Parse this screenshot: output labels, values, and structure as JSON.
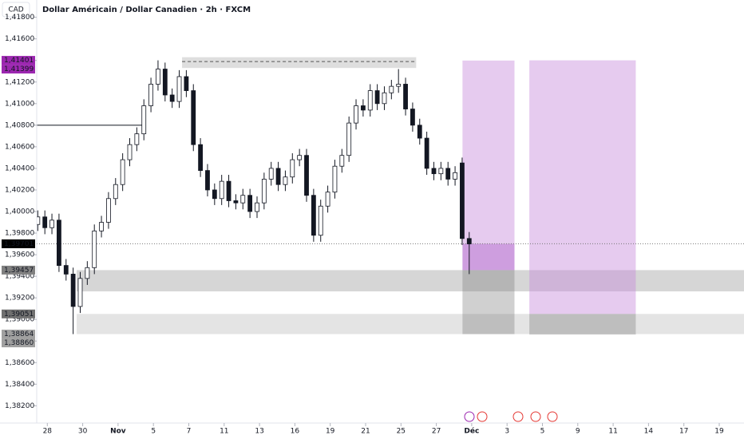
{
  "chart_data": {
    "type": "candlestick",
    "title": "Dollar Américain / Dollar Canadien · 2h · FXCM",
    "currency": "CAD",
    "xlim": [
      -0.3,
      19.7
    ],
    "ylim": [
      1.3804,
      1.4196
    ],
    "yticks": [
      {
        "value": 1.382,
        "label": "1,38200"
      },
      {
        "value": 1.384,
        "label": "1,38400"
      },
      {
        "value": 1.386,
        "label": "1,38600"
      },
      {
        "value": 1.388,
        "label": "1,38800"
      },
      {
        "value": 1.39,
        "label": "1,39000"
      },
      {
        "value": 1.392,
        "label": "1,39200"
      },
      {
        "value": 1.394,
        "label": "1,39400"
      },
      {
        "value": 1.396,
        "label": "1,39600"
      },
      {
        "value": 1.398,
        "label": "1,39800"
      },
      {
        "value": 1.4,
        "label": "1,40000"
      },
      {
        "value": 1.402,
        "label": "1,40200"
      },
      {
        "value": 1.404,
        "label": "1,40400"
      },
      {
        "value": 1.406,
        "label": "1,40600"
      },
      {
        "value": 1.408,
        "label": "1,40800"
      },
      {
        "value": 1.41,
        "label": "1,41000"
      },
      {
        "value": 1.412,
        "label": "1,41200"
      },
      {
        "value": 1.414,
        "label": "1,41400"
      },
      {
        "value": 1.416,
        "label": "1,41600"
      },
      {
        "value": 1.418,
        "label": "1,41800"
      }
    ],
    "xticks": [
      {
        "value": 0,
        "label": "28"
      },
      {
        "value": 1,
        "label": "30"
      },
      {
        "value": 2,
        "label": "Nov"
      },
      {
        "value": 3,
        "label": "5"
      },
      {
        "value": 4,
        "label": "7"
      },
      {
        "value": 5,
        "label": "11"
      },
      {
        "value": 6,
        "label": "13"
      },
      {
        "value": 7,
        "label": "16"
      },
      {
        "value": 8,
        "label": "19"
      },
      {
        "value": 9,
        "label": "21"
      },
      {
        "value": 10,
        "label": "25"
      },
      {
        "value": 11,
        "label": "27"
      },
      {
        "value": 12,
        "label": "Déc"
      },
      {
        "value": 13,
        "label": "3"
      },
      {
        "value": 14,
        "label": "5"
      },
      {
        "value": 15,
        "label": "9"
      },
      {
        "value": 16,
        "label": "11"
      },
      {
        "value": 17,
        "label": "14"
      },
      {
        "value": 18,
        "label": "17"
      },
      {
        "value": 19,
        "label": "19"
      }
    ],
    "x": [
      -0.27,
      -0.07,
      0.13,
      0.33,
      0.53,
      0.73,
      0.93,
      1.13,
      1.33,
      1.53,
      1.73,
      1.93,
      2.13,
      2.33,
      2.53,
      2.73,
      2.93,
      3.13,
      3.33,
      3.53,
      3.73,
      3.93,
      4.13,
      4.33,
      4.53,
      4.73,
      4.93,
      5.13,
      5.33,
      5.53,
      5.73,
      5.93,
      6.13,
      6.33,
      6.53,
      6.73,
      6.93,
      7.13,
      7.33,
      7.53,
      7.73,
      7.93,
      8.13,
      8.33,
      8.53,
      8.73,
      8.93,
      9.13,
      9.33,
      9.53,
      9.73,
      9.93,
      10.13,
      10.33,
      10.53,
      10.73,
      10.93,
      11.13,
      11.33,
      11.53,
      11.73,
      11.93
    ],
    "open": [
      1.3988,
      1.3995,
      1.3985,
      1.3992,
      1.395,
      1.3942,
      1.3912,
      1.3938,
      1.3948,
      1.3982,
      1.399,
      1.4012,
      1.4025,
      1.4048,
      1.4062,
      1.4072,
      1.4098,
      1.4118,
      1.4132,
      1.4108,
      1.4102,
      1.4125,
      1.4112,
      1.4062,
      1.4038,
      1.402,
      1.4012,
      1.4028,
      1.401,
      1.4008,
      1.4015,
      1.4,
      1.4008,
      1.403,
      1.404,
      1.4025,
      1.4032,
      1.4048,
      1.4052,
      1.4015,
      1.3978,
      1.4005,
      1.4018,
      1.4042,
      1.4052,
      1.4082,
      1.4098,
      1.4094,
      1.4112,
      1.41,
      1.411,
      1.4116,
      1.4118,
      1.4095,
      1.408,
      1.4068,
      1.404,
      1.4035,
      1.404,
      1.403,
      1.4045,
      1.3975
    ],
    "high": [
      1.4001,
      1.4001,
      1.3998,
      1.3998,
      1.3956,
      1.3948,
      1.3944,
      1.3954,
      1.3988,
      1.3996,
      1.4018,
      1.4031,
      1.4054,
      1.4068,
      1.4078,
      1.4104,
      1.4124,
      1.41401,
      1.4138,
      1.4114,
      1.4131,
      1.4131,
      1.4118,
      1.4068,
      1.4044,
      1.4026,
      1.4034,
      1.4034,
      1.4016,
      1.4021,
      1.4021,
      1.4014,
      1.4036,
      1.4046,
      1.4046,
      1.4038,
      1.4054,
      1.4058,
      1.4058,
      1.4021,
      1.4011,
      1.4024,
      1.4048,
      1.4058,
      1.4088,
      1.4104,
      1.4104,
      1.4118,
      1.4118,
      1.4116,
      1.4122,
      1.4132,
      1.4124,
      1.4101,
      1.4086,
      1.4074,
      1.4046,
      1.4046,
      1.4046,
      1.4042,
      1.405,
      1.3981
    ],
    "low": [
      1.3982,
      1.3979,
      1.3979,
      1.3944,
      1.3936,
      1.38864,
      1.3906,
      1.3932,
      1.3942,
      1.3976,
      1.3984,
      1.4006,
      1.4019,
      1.4042,
      1.4056,
      1.4066,
      1.4092,
      1.4112,
      1.4102,
      1.4096,
      1.4096,
      1.4106,
      1.4056,
      1.4032,
      1.4014,
      1.4006,
      1.4006,
      1.4004,
      1.4002,
      1.4002,
      1.3994,
      1.3994,
      1.4002,
      1.4024,
      1.4019,
      1.4019,
      1.4026,
      1.4042,
      1.4009,
      1.3972,
      1.3972,
      1.3999,
      1.4012,
      1.4036,
      1.4046,
      1.4076,
      1.4088,
      1.4088,
      1.4094,
      1.4094,
      1.4104,
      1.411,
      1.4089,
      1.4074,
      1.4062,
      1.4034,
      1.4029,
      1.4029,
      1.4024,
      1.4024,
      1.3969,
      1.3942
    ],
    "close": [
      1.3995,
      1.3985,
      1.3992,
      1.395,
      1.3942,
      1.3912,
      1.3938,
      1.3948,
      1.3982,
      1.399,
      1.4012,
      1.4025,
      1.4048,
      1.4062,
      1.4072,
      1.4098,
      1.4118,
      1.4132,
      1.4108,
      1.4102,
      1.4125,
      1.4112,
      1.4062,
      1.4038,
      1.402,
      1.4012,
      1.4028,
      1.401,
      1.4008,
      1.4015,
      1.4,
      1.4008,
      1.403,
      1.404,
      1.4025,
      1.4032,
      1.4048,
      1.4052,
      1.4015,
      1.3978,
      1.4005,
      1.4018,
      1.4042,
      1.4052,
      1.4082,
      1.4098,
      1.4094,
      1.4112,
      1.41,
      1.411,
      1.4116,
      1.4118,
      1.4095,
      1.408,
      1.4068,
      1.404,
      1.4035,
      1.404,
      1.403,
      1.4036,
      1.3975,
      1.397
    ],
    "up_color": "#ffffff",
    "down_color": "#131722",
    "wick_color": "#131722",
    "zones": [
      {
        "x0": 3.81,
        "x1": 10.43,
        "y0": 1.4133,
        "y1": 1.4143,
        "color": "rgba(160,160,160,0.35)"
      },
      {
        "x0": 0.83,
        "x1": 19.7,
        "y0": 1.3926,
        "y1": 1.39457,
        "color": "rgba(120,120,120,0.3)"
      },
      {
        "x0": 0.83,
        "x1": 19.7,
        "y0": 1.38864,
        "y1": 1.39051,
        "color": "rgba(120,120,120,0.2)"
      },
      {
        "x0": 11.74,
        "x1": 13.21,
        "y0": 1.39457,
        "y1": 1.41399,
        "color": "rgba(200,140,220,0.45)"
      },
      {
        "x0": 11.74,
        "x1": 13.21,
        "y0": 1.39457,
        "y1": 1.39701,
        "color": "rgba(170,90,200,0.4)"
      },
      {
        "x0": 11.74,
        "x1": 13.21,
        "y0": 1.38864,
        "y1": 1.39457,
        "color": "rgba(120,120,120,0.35)"
      },
      {
        "x0": 13.63,
        "x1": 16.64,
        "y0": 1.39051,
        "y1": 1.41401,
        "color": "rgba(200,140,220,0.45)"
      },
      {
        "x0": 13.63,
        "x1": 16.64,
        "y0": 1.3886,
        "y1": 1.39051,
        "color": "rgba(120,120,120,0.35)"
      }
    ],
    "lines": [
      {
        "x0": -0.3,
        "x1": 2.71,
        "y": 1.408,
        "color": "#131722",
        "dash": "none"
      },
      {
        "x0": 3.81,
        "x1": 10.43,
        "y": 1.4139,
        "color": "#555555",
        "dash": "4 3"
      },
      {
        "x0": -0.3,
        "x1": 19.7,
        "y": 1.39701,
        "color": "#777777",
        "dash": "1 2"
      }
    ],
    "price_labels": [
      {
        "value": 1.41401,
        "label": "1,41401",
        "color": "#9c27b0"
      },
      {
        "value": 1.41399,
        "label": "1,41399",
        "color": "#9c27b0"
      },
      {
        "value": 1.39701,
        "label": "1,39701",
        "color": "#000000"
      },
      {
        "value": 1.39457,
        "label": "1,39457",
        "color": "#808080"
      },
      {
        "value": 1.39051,
        "label": "1,39051",
        "color": "#707070"
      },
      {
        "value": 1.38864,
        "label": "1,38864",
        "color": "#a0a0a0"
      },
      {
        "value": 1.3886,
        "label": "1,38860",
        "color": "#a0a0a0"
      }
    ]
  }
}
